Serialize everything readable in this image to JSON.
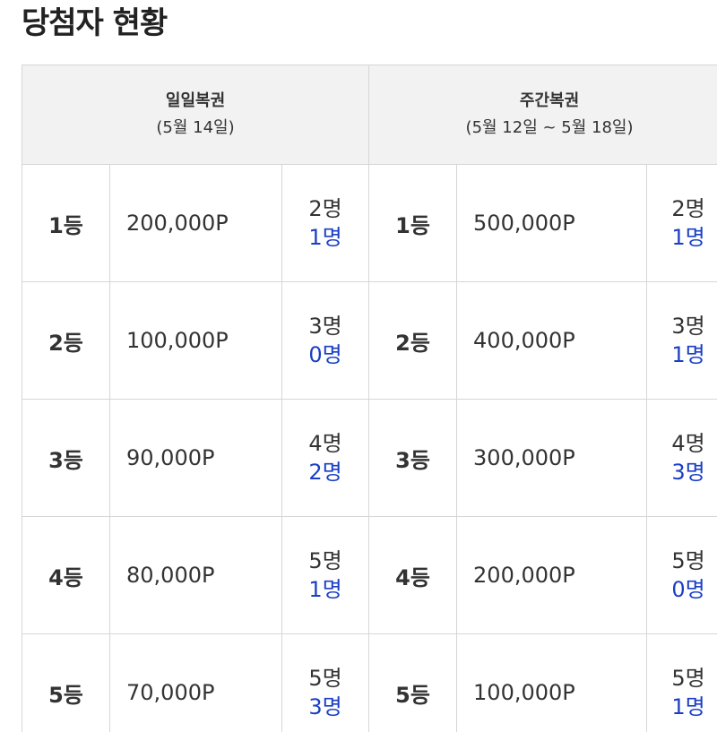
{
  "page_title": "당첨자 현황",
  "daily": {
    "title": "일일복권",
    "period": "(5월 14일)",
    "rows": [
      {
        "rank": "1등",
        "points": "200,000P",
        "total": "2명",
        "won": "1명"
      },
      {
        "rank": "2등",
        "points": "100,000P",
        "total": "3명",
        "won": "0명"
      },
      {
        "rank": "3등",
        "points": "90,000P",
        "total": "4명",
        "won": "2명"
      },
      {
        "rank": "4등",
        "points": "80,000P",
        "total": "5명",
        "won": "1명"
      },
      {
        "rank": "5등",
        "points": "70,000P",
        "total": "5명",
        "won": "3명"
      }
    ]
  },
  "weekly": {
    "title": "주간복권",
    "period": "(5월 12일 ~ 5월 18일)",
    "rows": [
      {
        "rank": "1등",
        "points": "500,000P",
        "total": "2명",
        "won": "1명"
      },
      {
        "rank": "2등",
        "points": "400,000P",
        "total": "3명",
        "won": "1명"
      },
      {
        "rank": "3등",
        "points": "300,000P",
        "total": "4명",
        "won": "3명"
      },
      {
        "rank": "4등",
        "points": "200,000P",
        "total": "5명",
        "won": "0명"
      },
      {
        "rank": "5등",
        "points": "100,000P",
        "total": "5명",
        "won": "1명"
      }
    ]
  },
  "colors": {
    "header_bg": "#f2f2f2",
    "border": "#d6d6d6",
    "won_count": "#1a3fc4",
    "text": "#333333"
  }
}
